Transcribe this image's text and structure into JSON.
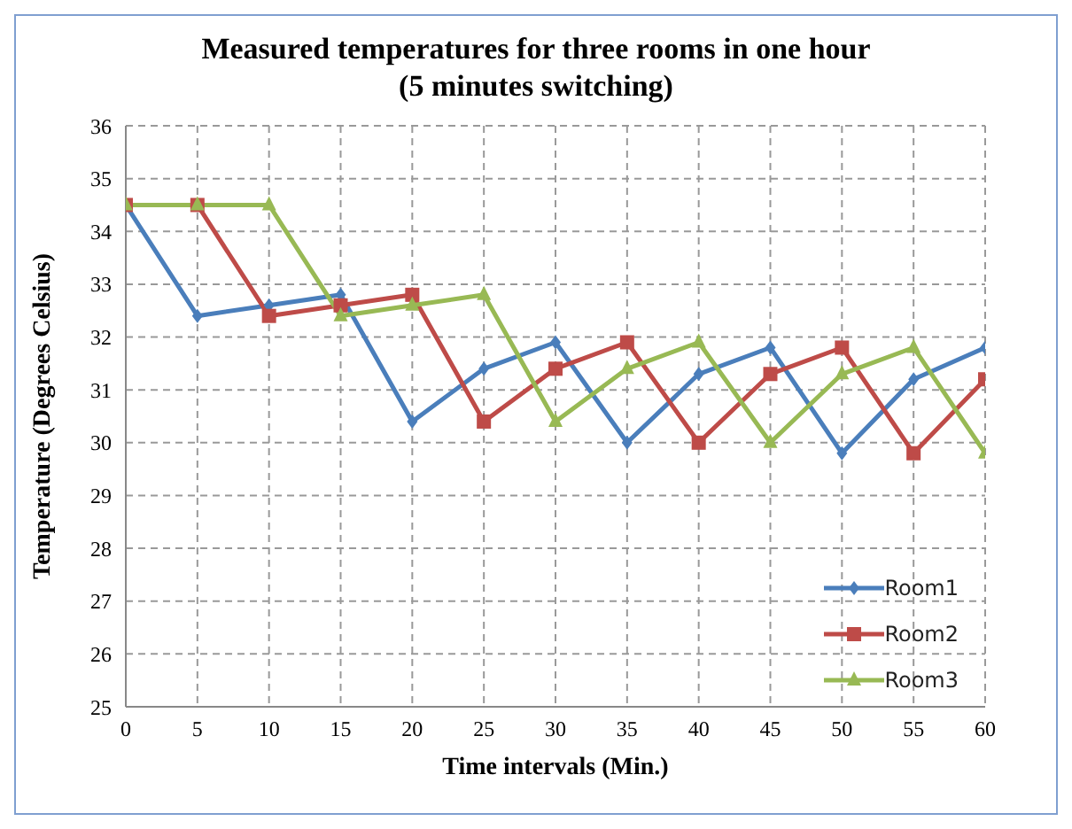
{
  "chart_data": {
    "type": "line",
    "title": "Measured temperatures for three rooms in one hour\n(5 minutes switching)",
    "xlabel": "Time intervals (Min.)",
    "ylabel": "Temperature (Degrees Celsius)",
    "x": [
      0,
      5,
      10,
      15,
      20,
      25,
      30,
      35,
      40,
      45,
      50,
      55,
      60
    ],
    "series": [
      {
        "name": "Room1",
        "color": "#4a7ebb",
        "marker": "diamond",
        "values": [
          34.5,
          32.4,
          32.6,
          32.8,
          30.4,
          31.4,
          31.9,
          30.0,
          31.3,
          31.8,
          29.8,
          31.2,
          31.8
        ]
      },
      {
        "name": "Room2",
        "color": "#be4b48",
        "marker": "square",
        "values": [
          34.5,
          34.5,
          32.4,
          32.6,
          32.8,
          30.4,
          31.4,
          31.9,
          30.0,
          31.3,
          31.8,
          29.8,
          31.2
        ]
      },
      {
        "name": "Room3",
        "color": "#98b954",
        "marker": "triangle",
        "values": [
          34.5,
          34.5,
          34.5,
          32.4,
          32.6,
          32.8,
          30.4,
          31.4,
          31.9,
          30.0,
          31.3,
          31.8,
          29.8
        ]
      }
    ],
    "xlim": [
      0,
      60
    ],
    "xticks": [
      0,
      5,
      10,
      15,
      20,
      25,
      30,
      35,
      40,
      45,
      50,
      55,
      60
    ],
    "ylim": [
      25,
      36
    ],
    "yticks": [
      25,
      26,
      27,
      28,
      29,
      30,
      31,
      32,
      33,
      34,
      35,
      36
    ],
    "grid": true,
    "legend": "bottom right",
    "line_style": "solid"
  }
}
